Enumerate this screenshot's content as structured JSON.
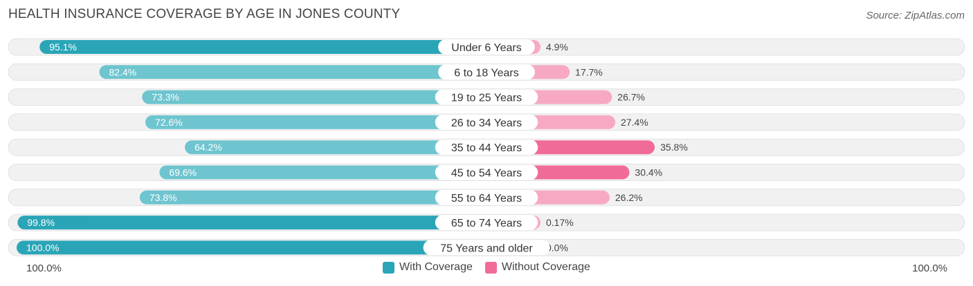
{
  "title": "HEALTH INSURANCE COVERAGE BY AGE IN JONES COUNTY",
  "source": "Source: ZipAtlas.com",
  "colors": {
    "with_strong": "#2aa5b7",
    "with_light": "#6ec5cf",
    "without_strong": "#f06b98",
    "without_light": "#f7a9c3",
    "track": "#f1f1f1"
  },
  "chart_data": {
    "type": "bar",
    "orientation": "horizontal-diverging",
    "title": "HEALTH INSURANCE COVERAGE BY AGE IN JONES COUNTY",
    "categories": [
      "Under 6 Years",
      "6 to 18 Years",
      "19 to 25 Years",
      "26 to 34 Years",
      "35 to 44 Years",
      "45 to 54 Years",
      "55 to 64 Years",
      "65 to 74 Years",
      "75 Years and older"
    ],
    "series": [
      {
        "name": "With Coverage",
        "values": [
          95.1,
          82.4,
          73.3,
          72.6,
          64.2,
          69.6,
          73.8,
          99.8,
          100.0
        ],
        "labels": [
          "95.1%",
          "82.4%",
          "73.3%",
          "72.6%",
          "64.2%",
          "69.6%",
          "73.8%",
          "99.8%",
          "100.0%"
        ]
      },
      {
        "name": "Without Coverage",
        "values": [
          4.9,
          17.7,
          26.7,
          27.4,
          35.8,
          30.4,
          26.2,
          0.17,
          0.0
        ],
        "labels": [
          "4.9%",
          "17.7%",
          "26.7%",
          "27.4%",
          "35.8%",
          "30.4%",
          "26.2%",
          "0.17%",
          "0.0%"
        ]
      }
    ],
    "axis_left_label": "100.0%",
    "axis_right_label": "100.0%",
    "xlim": [
      -100,
      100
    ],
    "legend_position": "bottom-center"
  }
}
